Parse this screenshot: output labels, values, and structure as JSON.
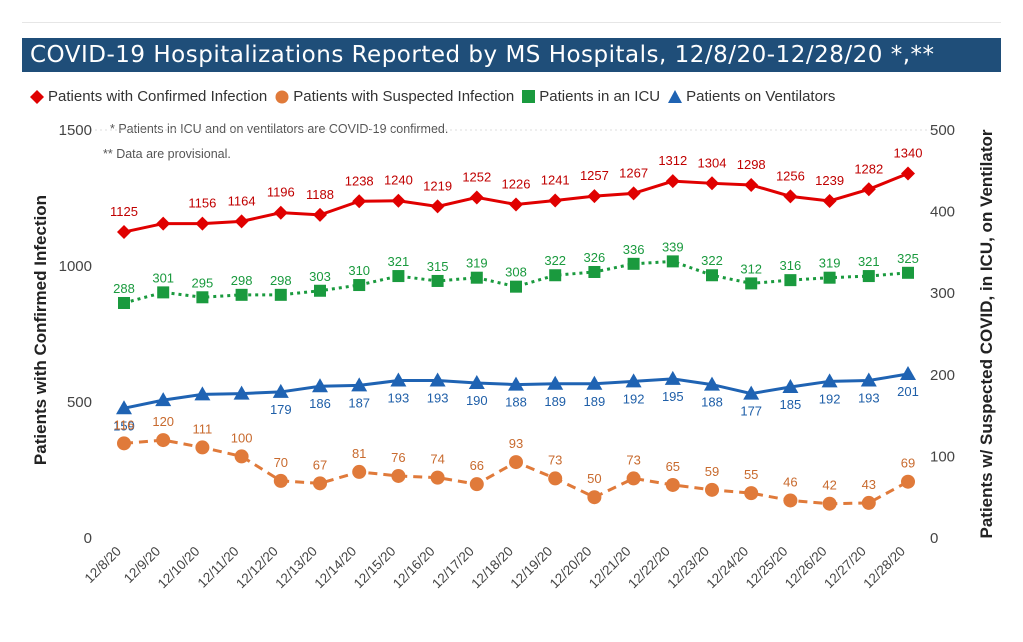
{
  "title": "COVID-19 Hospitalizations Reported by MS Hospitals, 12/8/20-12/28/20 *,**",
  "notes": [
    "* Patients in ICU and on ventilators are COVID-19 confirmed.",
    "** Data are provisional."
  ],
  "colors": {
    "title_bar": "#1f4e79",
    "confirmed": "#e00000",
    "suspected": "#e07a3a",
    "icu": "#1a9a3e",
    "vent": "#1f63b3"
  },
  "chart_data": {
    "type": "line",
    "title": "COVID-19 Hospitalizations Reported by MS Hospitals, 12/8/20-12/28/20 *,**",
    "xlabel": "",
    "ylabel": "Patients with Confirmed Infection",
    "y2label": "Patients w/ Suspected COVID, in ICU, on Ventilator",
    "categories": [
      "12/8/20",
      "12/9/20",
      "12/10/20",
      "12/11/20",
      "12/12/20",
      "12/13/20",
      "12/14/20",
      "12/15/20",
      "12/16/20",
      "12/17/20",
      "12/18/20",
      "12/19/20",
      "12/20/20",
      "12/21/20",
      "12/22/20",
      "12/23/20",
      "12/24/20",
      "12/25/20",
      "12/26/20",
      "12/27/20",
      "12/28/20"
    ],
    "ylim": [
      0,
      1500
    ],
    "y2lim": [
      0,
      500
    ],
    "yticks": [
      0,
      500,
      1000,
      1500
    ],
    "y2ticks": [
      0,
      100,
      200,
      300,
      400,
      500
    ],
    "grid": false,
    "legend_position": "top",
    "series": [
      {
        "name": "Patients with Confirmed Infection",
        "axis": "left",
        "marker": "diamond",
        "line": "solid",
        "values": [
          1125,
          1156,
          1156,
          1164,
          1196,
          1188,
          1238,
          1240,
          1219,
          1252,
          1226,
          1241,
          1257,
          1267,
          1312,
          1304,
          1298,
          1256,
          1239,
          1282,
          1340
        ],
        "labels": [
          "1125",
          "",
          "1156",
          "1164",
          "1196",
          "1188",
          "1238",
          "1240",
          "1219",
          "1252",
          "1226",
          "1241",
          "1257",
          "1267",
          "1312",
          "1304",
          "1298",
          "1256",
          "1239",
          "1282",
          "1340"
        ]
      },
      {
        "name": "Patients with Suspected Infection",
        "axis": "right",
        "marker": "circle",
        "line": "dashed",
        "values": [
          116,
          120,
          111,
          100,
          70,
          67,
          81,
          76,
          74,
          66,
          93,
          73,
          50,
          73,
          65,
          59,
          55,
          46,
          42,
          43,
          69
        ]
      },
      {
        "name": "Patients in an ICU",
        "axis": "right",
        "marker": "square",
        "line": "dotted",
        "values": [
          288,
          301,
          295,
          298,
          298,
          303,
          310,
          321,
          315,
          319,
          308,
          322,
          326,
          336,
          339,
          322,
          312,
          316,
          319,
          321,
          325
        ]
      },
      {
        "name": "Patients on Ventilators",
        "axis": "right",
        "marker": "triangle",
        "line": "solid",
        "values": [
          159,
          169,
          176,
          177,
          179,
          186,
          187,
          193,
          193,
          190,
          188,
          189,
          189,
          192,
          195,
          188,
          177,
          185,
          192,
          193,
          201
        ],
        "labels": [
          "159",
          "",
          "",
          "",
          "179",
          "186",
          "187",
          "193",
          "193",
          "190",
          "188",
          "189",
          "189",
          "192",
          "195",
          "188",
          "177",
          "185",
          "192",
          "193",
          "201"
        ]
      }
    ]
  }
}
